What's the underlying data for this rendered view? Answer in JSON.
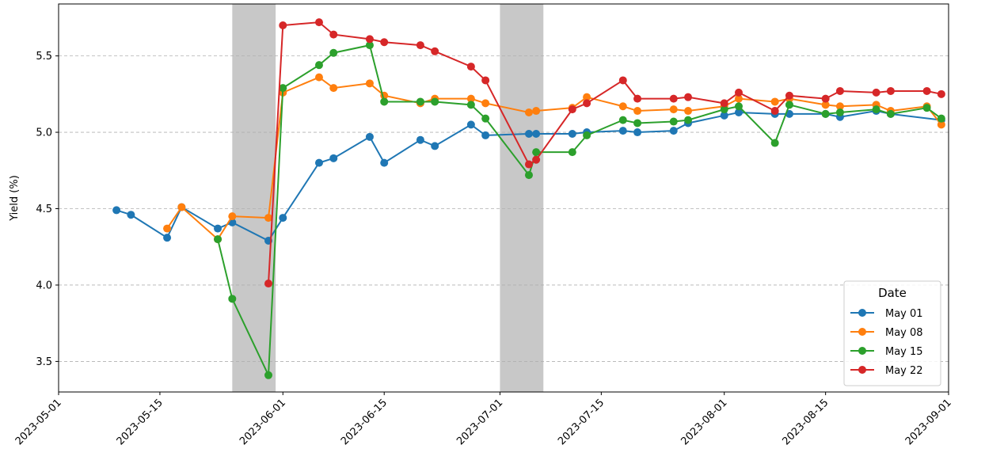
{
  "chart_data": {
    "type": "line",
    "ylabel": "Yield (%)",
    "legend_title": "Date",
    "legend": "lower right",
    "grid": true,
    "xlim": [
      "2023-05-01",
      "2023-09-01"
    ],
    "xticks": [
      "2023-05-01",
      "2023-05-15",
      "2023-06-01",
      "2023-06-15",
      "2023-07-01",
      "2023-07-15",
      "2023-08-01",
      "2023-08-15",
      "2023-09-01"
    ],
    "ylim": [
      3.3,
      5.84
    ],
    "yticks": [
      3.5,
      {
        "value": 4,
        "label": "4.0"
      },
      4.5,
      {
        "value": 5,
        "label": "5.0"
      },
      5.5
    ],
    "spans": [
      {
        "x": [
          "2023-05-25",
          "2023-05-31"
        ]
      },
      {
        "x": [
          "2023-07-01",
          "2023-07-07"
        ]
      }
    ],
    "span_color": "#c8c8c8",
    "series": [
      {
        "name": "May 01",
        "color": "#1f77b4",
        "x": [
          "2023-05-09",
          "2023-05-11",
          "2023-05-16",
          "2023-05-18",
          "2023-05-23",
          "2023-05-25",
          "2023-05-30",
          "2023-06-01",
          "2023-06-06",
          "2023-06-08",
          "2023-06-13",
          "2023-06-15",
          "2023-06-20",
          "2023-06-22",
          "2023-06-27",
          "2023-06-29",
          "2023-07-05",
          "2023-07-06",
          "2023-07-11",
          "2023-07-13",
          "2023-07-18",
          "2023-07-20",
          "2023-07-25",
          "2023-07-27",
          "2023-08-01",
          "2023-08-03",
          "2023-08-08",
          "2023-08-10",
          "2023-08-15",
          "2023-08-17",
          "2023-08-22",
          "2023-08-24",
          "2023-08-31"
        ],
        "values": [
          4.49,
          4.46,
          4.31,
          4.51,
          4.37,
          4.41,
          4.29,
          4.44,
          4.8,
          4.83,
          4.97,
          4.8,
          4.95,
          4.91,
          5.05,
          4.98,
          4.99,
          4.99,
          4.99,
          5.0,
          5.01,
          5.0,
          5.01,
          5.06,
          5.11,
          5.13,
          5.12,
          5.12,
          5.12,
          5.1,
          5.14,
          5.12,
          5.08
        ]
      },
      {
        "name": "May 08",
        "color": "#ff7f0e",
        "x": [
          "2023-05-16",
          "2023-05-18",
          "2023-05-23",
          "2023-05-25",
          "2023-05-30",
          "2023-06-01",
          "2023-06-06",
          "2023-06-08",
          "2023-06-13",
          "2023-06-15",
          "2023-06-20",
          "2023-06-22",
          "2023-06-27",
          "2023-06-29",
          "2023-07-05",
          "2023-07-06",
          "2023-07-11",
          "2023-07-13",
          "2023-07-18",
          "2023-07-20",
          "2023-07-25",
          "2023-07-27",
          "2023-08-01",
          "2023-08-03",
          "2023-08-08",
          "2023-08-10",
          "2023-08-15",
          "2023-08-17",
          "2023-08-22",
          "2023-08-24",
          "2023-08-29",
          "2023-08-31"
        ],
        "values": [
          4.37,
          4.51,
          4.3,
          4.45,
          4.44,
          5.26,
          5.36,
          5.29,
          5.32,
          5.24,
          5.19,
          5.22,
          5.22,
          5.19,
          5.13,
          5.14,
          5.16,
          5.23,
          5.17,
          5.14,
          5.15,
          5.14,
          5.17,
          5.22,
          5.2,
          5.22,
          5.18,
          5.17,
          5.18,
          5.14,
          5.17,
          5.05
        ]
      },
      {
        "name": "May 15",
        "color": "#2ca02c",
        "x": [
          "2023-05-23",
          "2023-05-25",
          "2023-05-30",
          "2023-06-01",
          "2023-06-06",
          "2023-06-08",
          "2023-06-13",
          "2023-06-15",
          "2023-06-20",
          "2023-06-22",
          "2023-06-27",
          "2023-06-29",
          "2023-07-05",
          "2023-07-06",
          "2023-07-11",
          "2023-07-13",
          "2023-07-18",
          "2023-07-20",
          "2023-07-25",
          "2023-07-27",
          "2023-08-01",
          "2023-08-03",
          "2023-08-08",
          "2023-08-10",
          "2023-08-15",
          "2023-08-17",
          "2023-08-22",
          "2023-08-24",
          "2023-08-29",
          "2023-08-31"
        ],
        "values": [
          4.3,
          3.91,
          3.41,
          5.29,
          5.44,
          5.52,
          5.57,
          5.2,
          5.2,
          5.2,
          5.18,
          5.09,
          4.72,
          4.87,
          4.87,
          4.98,
          5.08,
          5.06,
          5.07,
          5.08,
          5.15,
          5.17,
          4.93,
          5.18,
          5.12,
          5.13,
          5.15,
          5.12,
          5.16,
          5.09
        ]
      },
      {
        "name": "May 22",
        "color": "#d62728",
        "x": [
          "2023-05-30",
          "2023-06-01",
          "2023-06-06",
          "2023-06-08",
          "2023-06-13",
          "2023-06-15",
          "2023-06-20",
          "2023-06-22",
          "2023-06-27",
          "2023-06-29",
          "2023-07-05",
          "2023-07-06",
          "2023-07-11",
          "2023-07-13",
          "2023-07-18",
          "2023-07-20",
          "2023-07-25",
          "2023-07-27",
          "2023-08-01",
          "2023-08-03",
          "2023-08-08",
          "2023-08-10",
          "2023-08-15",
          "2023-08-17",
          "2023-08-22",
          "2023-08-24",
          "2023-08-29",
          "2023-08-31"
        ],
        "values": [
          4.01,
          5.7,
          5.72,
          5.64,
          5.61,
          5.59,
          5.57,
          5.53,
          5.43,
          5.34,
          4.79,
          4.82,
          5.15,
          5.19,
          5.34,
          5.22,
          5.22,
          5.23,
          5.19,
          5.26,
          5.14,
          5.24,
          5.22,
          5.27,
          5.26,
          5.27,
          5.27,
          5.25
        ]
      }
    ]
  }
}
